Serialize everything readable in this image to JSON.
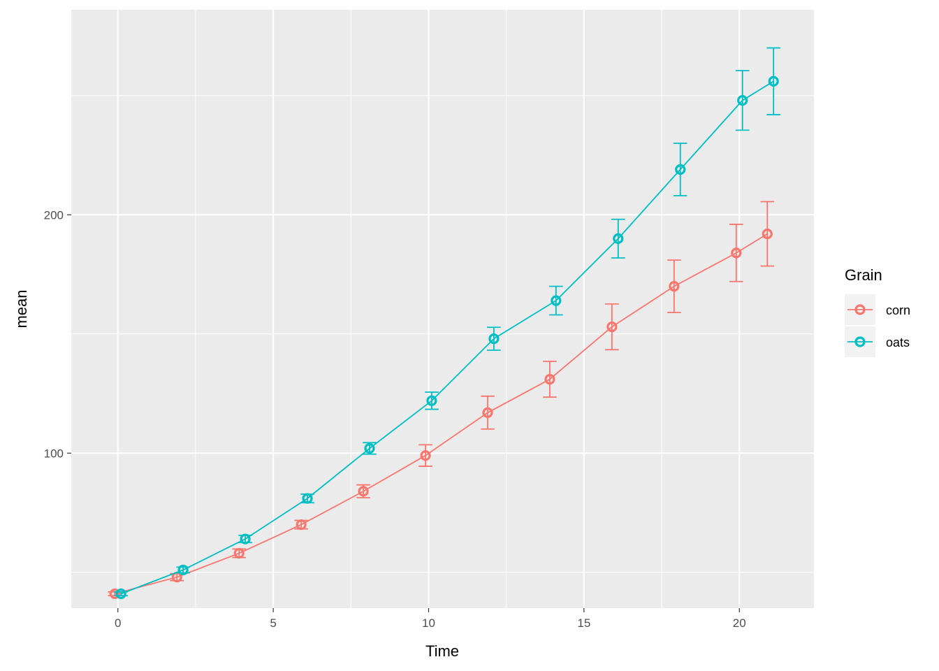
{
  "chart_data": {
    "type": "line",
    "xlabel": "Time",
    "ylabel": "mean",
    "xlim": [
      -1.5,
      22.4
    ],
    "ylim": [
      35,
      286
    ],
    "x_ticks": [
      0,
      5,
      10,
      15,
      20
    ],
    "y_ticks": [
      100,
      200
    ],
    "grid": true,
    "legend": {
      "title": "Grain",
      "position": "right"
    },
    "series": [
      {
        "name": "corn",
        "color": "#F8766D",
        "points": [
          {
            "x": 0,
            "y": 41,
            "err": 0.8
          },
          {
            "x": 2,
            "y": 48,
            "err": 1.5
          },
          {
            "x": 4,
            "y": 58,
            "err": 1.8
          },
          {
            "x": 6,
            "y": 70,
            "err": 1.8
          },
          {
            "x": 8,
            "y": 84,
            "err": 2.7
          },
          {
            "x": 10,
            "y": 99,
            "err": 4.5
          },
          {
            "x": 12,
            "y": 117,
            "err": 6.9
          },
          {
            "x": 14,
            "y": 131,
            "err": 7.5
          },
          {
            "x": 16,
            "y": 153,
            "err": 9.6
          },
          {
            "x": 18,
            "y": 170,
            "err": 11
          },
          {
            "x": 20,
            "y": 184,
            "err": 12
          },
          {
            "x": 21,
            "y": 192,
            "err": 13.5
          }
        ]
      },
      {
        "name": "oats",
        "color": "#00BFC4",
        "points": [
          {
            "x": 0,
            "y": 41,
            "err": 0.8
          },
          {
            "x": 2,
            "y": 51,
            "err": 1.2
          },
          {
            "x": 4,
            "y": 64,
            "err": 1.5
          },
          {
            "x": 6,
            "y": 81,
            "err": 1.8
          },
          {
            "x": 8,
            "y": 102,
            "err": 2.4
          },
          {
            "x": 10,
            "y": 122,
            "err": 3.6
          },
          {
            "x": 12,
            "y": 148,
            "err": 4.8
          },
          {
            "x": 14,
            "y": 164,
            "err": 6
          },
          {
            "x": 16,
            "y": 190,
            "err": 8.1
          },
          {
            "x": 18,
            "y": 219,
            "err": 11
          },
          {
            "x": 20,
            "y": 248,
            "err": 12.5
          },
          {
            "x": 21,
            "y": 256,
            "err": 14
          }
        ]
      }
    ]
  }
}
